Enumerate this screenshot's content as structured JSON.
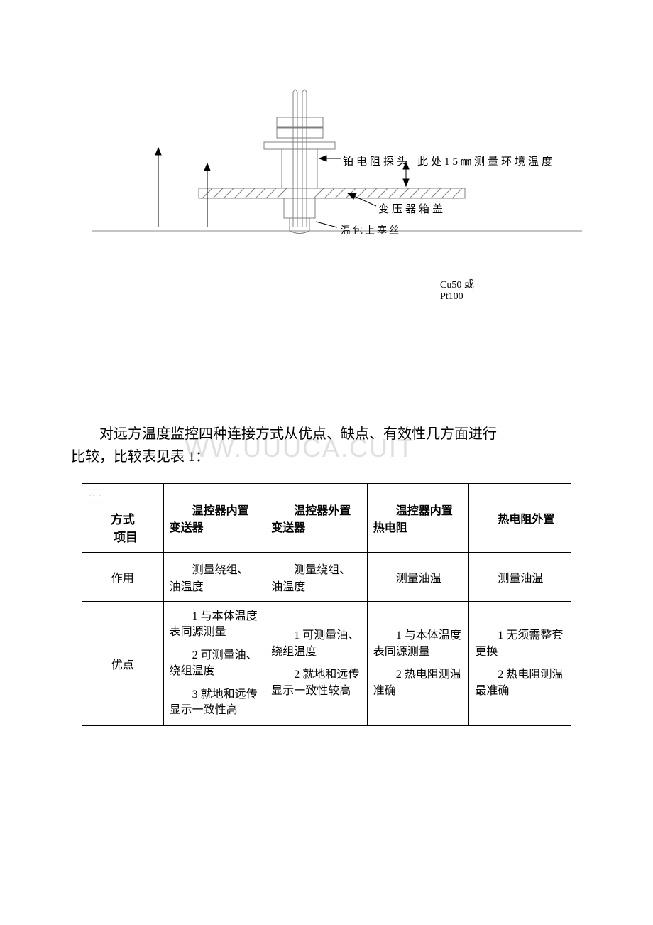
{
  "diagram": {
    "labels": {
      "probe": "铂电阻探头",
      "env": "此处15㎜测量环境温度",
      "lid": "变压器箱盖",
      "screw": "温包上塞丝"
    },
    "line_color": "#808080",
    "hatch_color": "#808080",
    "text_color": "#000000"
  },
  "extra": {
    "l1": "Cu50 或",
    "l2": "Pt100"
  },
  "para": {
    "l1": "对远方温度监控四种连接方式从优点、缺点、有效性几方面进行",
    "l2": "比较，比较表见表 1："
  },
  "watermark": "WW.UUUCA.CUIT",
  "table": {
    "header": {
      "diag_top": "方式",
      "diag_bottom": "项目",
      "c2": "温控器内置变送器",
      "c3": "温控器外置变送器",
      "c4": "温控器内置热电阻",
      "c5": "热电阻外置"
    },
    "rows": [
      {
        "label": "作用",
        "c2": "测量绕组、油温度",
        "c3": "测量绕组、油温度",
        "c4": "测量油温",
        "c5": "测量油温"
      },
      {
        "label": "优点",
        "c2": [
          "1 与本体温度表同源测量",
          "2 可测量油、绕组温度",
          "3 就地和远传显示一致性高"
        ],
        "c3": [
          "1 可测量油、绕组温度",
          "2 就地和远传显示一致性较高"
        ],
        "c4": [
          "1 与本体温度表同源测量",
          "2 热电阻测温准确"
        ],
        "c5": [
          "1 无须需整套更换",
          "2 热电阻测温最准确"
        ]
      }
    ]
  }
}
